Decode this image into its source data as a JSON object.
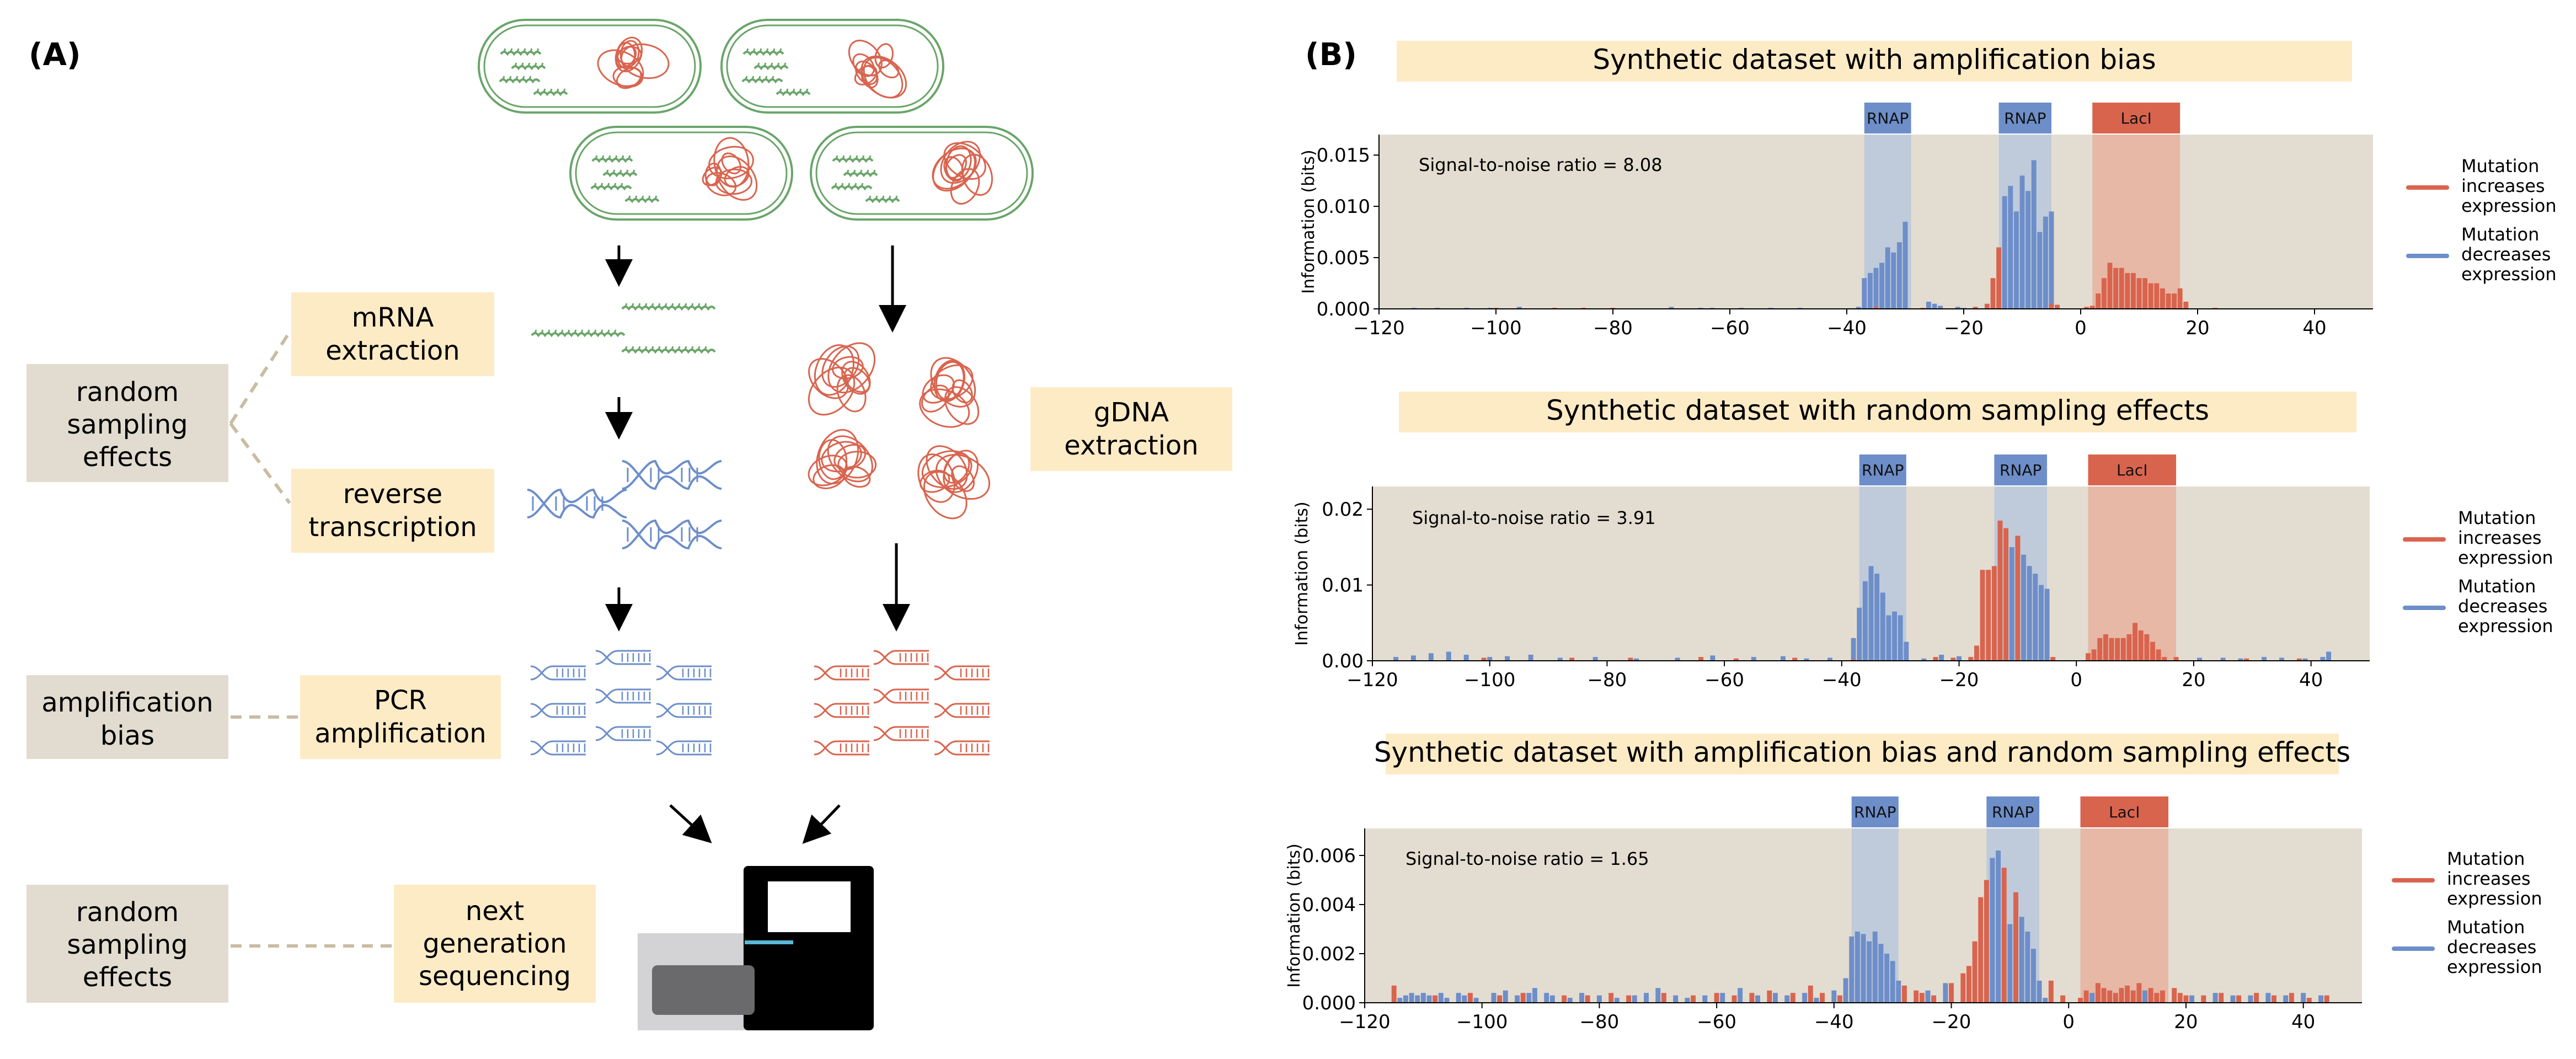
{
  "panel_a": {
    "label": "(A)",
    "boxes": {
      "random_sampling_1": [
        "random",
        "sampling",
        "effects"
      ],
      "amplification_bias": [
        "amplification",
        "bias"
      ],
      "random_sampling_2": [
        "random",
        "sampling",
        "effects"
      ],
      "mrna_extraction": [
        "mRNA",
        "extraction"
      ],
      "reverse_transcription": [
        "reverse",
        "transcription"
      ],
      "pcr_amplification": [
        "PCR",
        "amplification"
      ],
      "next_gen_sequencing": [
        "next",
        "generation",
        "sequencing"
      ],
      "gdna_extraction": [
        "gDNA",
        "extraction"
      ]
    }
  },
  "panel_b": {
    "label": "(B)",
    "ylabel": "Information (bits)",
    "legend": {
      "increases": [
        "Mutation",
        "increases",
        "expression"
      ],
      "decreases": [
        "Mutation",
        "decreases",
        "expression"
      ]
    },
    "region_labels": [
      "RNAP",
      "RNAP",
      "LacI"
    ]
  },
  "colors": {
    "red": "#d9644e",
    "blue": "#6d8ec9",
    "green": "#6aa56a",
    "box_fill": "#fdebc6",
    "gray_box": "#e1dccf",
    "plot_bg": "#e3ddd1",
    "red_band": "#e8b19f",
    "blue_band": "#b9c8dc"
  },
  "chart_data": [
    {
      "type": "bar",
      "title": "Synthetic dataset with amplification bias",
      "annotation": "Signal-to-noise ratio = 8.08",
      "ylabel": "Information (bits)",
      "xlim": [
        -120,
        50
      ],
      "ylim": [
        0,
        0.017
      ],
      "x_ticks": [
        -120,
        -100,
        -80,
        -60,
        -40,
        -20,
        0,
        20,
        40
      ],
      "y_ticks": [
        "0.000",
        "0.005",
        "0.010",
        "0.015"
      ],
      "y_tick_values": [
        0,
        0.005,
        0.01,
        0.015
      ],
      "regions": [
        {
          "label": "RNAP",
          "start": -37,
          "end": -29,
          "color": "blue"
        },
        {
          "label": "RNAP",
          "start": -14,
          "end": -5,
          "color": "blue"
        },
        {
          "label": "LacI",
          "start": 2,
          "end": 17,
          "color": "red"
        }
      ],
      "series": [
        {
          "color": "blue",
          "x": [
            -38,
            -37,
            -36,
            -35,
            -34,
            -33,
            -32,
            -31,
            -30,
            -26,
            -25,
            -24,
            -21,
            -20,
            -13,
            -12,
            -11,
            -10,
            -9,
            -8,
            -7,
            -6,
            -5,
            -114,
            -110,
            -105,
            -101,
            -96,
            -70,
            -65,
            -63,
            -58,
            -53,
            -48
          ],
          "values": [
            0.0002,
            0.003,
            0.0035,
            0.004,
            0.0045,
            0.006,
            0.0055,
            0.0065,
            0.0085,
            0.0007,
            0.0005,
            0.0003,
            0.0002,
            0.0001,
            0.011,
            0.012,
            0.0095,
            0.013,
            0.0115,
            0.0145,
            0.0075,
            0.009,
            0.0095,
            0.0001,
            0.0001,
            0.0001,
            0.0001,
            0.0002,
            0.0002,
            0.0001,
            0.0001,
            0.0001,
            0.0001,
            0.0001
          ]
        },
        {
          "color": "red",
          "x": [
            -16,
            -15,
            -14,
            -5,
            -4,
            1,
            2,
            3,
            4,
            5,
            6,
            7,
            8,
            9,
            10,
            11,
            12,
            13,
            14,
            15,
            16,
            17,
            18,
            -100,
            -90,
            -85,
            -80,
            -35,
            -27,
            -18,
            23
          ],
          "values": [
            0.0005,
            0.003,
            0.006,
            0.0005,
            0.0004,
            0.0002,
            0.0003,
            0.0015,
            0.003,
            0.0045,
            0.004,
            0.004,
            0.0035,
            0.0035,
            0.003,
            0.003,
            0.0025,
            0.0025,
            0.002,
            0.0015,
            0.0015,
            0.002,
            0.0007,
            0.0001,
            0.0001,
            0.0001,
            0.0001,
            0.0002,
            0.0001,
            0.0002,
            0.0001
          ]
        }
      ]
    },
    {
      "type": "bar",
      "title": "Synthetic dataset with random sampling effects",
      "annotation": "Signal-to-noise ratio = 3.91",
      "ylabel": "Information (bits)",
      "xlim": [
        -120,
        50
      ],
      "ylim": [
        0,
        0.023
      ],
      "x_ticks": [
        -120,
        -100,
        -80,
        -60,
        -40,
        -20,
        0,
        20,
        40
      ],
      "y_ticks": [
        "0.00",
        "0.01",
        "0.02"
      ],
      "y_tick_values": [
        0,
        0.01,
        0.02
      ],
      "regions": [
        {
          "label": "RNAP",
          "start": -37,
          "end": -29,
          "color": "blue"
        },
        {
          "label": "RNAP",
          "start": -14,
          "end": -5,
          "color": "blue"
        },
        {
          "label": "LacI",
          "start": 2,
          "end": 17,
          "color": "red"
        }
      ],
      "series": [
        {
          "color": "blue",
          "x": [
            -38,
            -37,
            -36,
            -35,
            -34,
            -33,
            -32,
            -31,
            -30,
            -29,
            -11,
            -9,
            -8,
            -7,
            -6,
            -5,
            -116,
            -113,
            -110,
            -107,
            -104,
            -100,
            -97,
            -93,
            -88,
            -82,
            -75,
            -68,
            -62,
            -55,
            -50,
            -46,
            -42,
            -26,
            -23,
            -20,
            -17,
            21,
            25,
            28,
            32,
            35,
            39,
            42,
            43
          ],
          "values": [
            0.003,
            0.007,
            0.0105,
            0.0125,
            0.0115,
            0.009,
            0.006,
            0.0065,
            0.006,
            0.0025,
            0.015,
            0.014,
            0.0125,
            0.0115,
            0.01,
            0.0095,
            0.0005,
            0.0007,
            0.001,
            0.0012,
            0.0008,
            0.0005,
            0.0006,
            0.0008,
            0.0004,
            0.0005,
            0.0003,
            0.0004,
            0.0007,
            0.0005,
            0.0006,
            0.0003,
            0.0004,
            0.0003,
            0.0008,
            0.0006,
            0.0004,
            0.0004,
            0.0004,
            0.0003,
            0.0005,
            0.0004,
            0.0003,
            0.0005,
            0.0012
          ]
        },
        {
          "color": "red",
          "x": [
            -18,
            -17,
            -16,
            -15,
            -14,
            -13,
            -12,
            -10,
            -4,
            2,
            3,
            4,
            5,
            6,
            7,
            8,
            9,
            10,
            11,
            12,
            13,
            14,
            15,
            17,
            -101,
            -86,
            -76,
            -64,
            -58,
            -48,
            -38,
            -24,
            -21,
            29,
            38
          ],
          "values": [
            0.0005,
            0.002,
            0.012,
            0.012,
            0.0125,
            0.0185,
            0.0175,
            0.0165,
            0.0005,
            0.001,
            0.0015,
            0.003,
            0.0035,
            0.003,
            0.003,
            0.003,
            0.0035,
            0.005,
            0.004,
            0.0035,
            0.0025,
            0.0015,
            0.0005,
            0.0005,
            0.0004,
            0.0004,
            0.0004,
            0.0005,
            0.0003,
            0.0004,
            0.0002,
            0.0005,
            0.0004,
            0.0003,
            0.0003
          ]
        }
      ]
    },
    {
      "type": "bar",
      "title": "Synthetic dataset with amplification bias and random sampling effects",
      "annotation": "Signal-to-noise ratio = 1.65",
      "ylabel": "Information (bits)",
      "xlim": [
        -120,
        50
      ],
      "ylim": [
        0,
        0.0071
      ],
      "x_ticks": [
        -120,
        -100,
        -80,
        -60,
        -40,
        -20,
        0,
        20,
        40
      ],
      "y_ticks": [
        "0.000",
        "0.002",
        "0.004",
        "0.006"
      ],
      "y_tick_values": [
        0,
        0.002,
        0.004,
        0.006
      ],
      "regions": [
        {
          "label": "RNAP",
          "start": -37,
          "end": -29,
          "color": "blue"
        },
        {
          "label": "RNAP",
          "start": -14,
          "end": -5,
          "color": "blue"
        },
        {
          "label": "LacI",
          "start": 2,
          "end": 17,
          "color": "red"
        }
      ],
      "series": [
        {
          "color": "blue",
          "x": [
            -114,
            -113,
            -112,
            -111,
            -110,
            -109,
            -107,
            -106,
            -104,
            -103,
            -101,
            -98,
            -96,
            -94,
            -92,
            -91,
            -89,
            -88,
            -85,
            -83,
            -80,
            -77,
            -74,
            -72,
            -70,
            -67,
            -65,
            -62,
            -59,
            -56,
            -53,
            -50,
            -48,
            -45,
            -43,
            -40,
            -38,
            -37,
            -36,
            -35,
            -34,
            -33,
            -32,
            -31,
            -30,
            -29,
            -13,
            -12,
            -10,
            -8,
            -7,
            -6,
            -5,
            -4,
            -24,
            -21,
            4,
            13,
            21,
            25,
            28,
            31,
            34,
            37,
            40,
            43
          ],
          "values": [
            0.0002,
            0.0003,
            0.0004,
            0.0003,
            0.0004,
            0.0003,
            0.0004,
            0.0002,
            0.0004,
            0.0003,
            0.0002,
            0.0004,
            0.0005,
            0.0003,
            0.0004,
            0.0006,
            0.0004,
            0.0003,
            0.0002,
            0.0004,
            0.0003,
            0.0002,
            0.0003,
            0.0004,
            0.0006,
            0.0003,
            0.0002,
            0.0003,
            0.0004,
            0.0006,
            0.0003,
            0.0004,
            0.0003,
            0.0004,
            0.0002,
            0.0005,
            0.001,
            0.0027,
            0.0029,
            0.0028,
            0.0025,
            0.0029,
            0.0024,
            0.002,
            0.0017,
            0.0009,
            0.0059,
            0.0062,
            0.0032,
            0.0035,
            0.0029,
            0.0022,
            0.0009,
            0.0002,
            0.0005,
            0.0008,
            0.0004,
            0.0005,
            0.0003,
            0.0004,
            0.0003,
            0.0003,
            0.0004,
            0.0003,
            0.0004,
            0.0003
          ]
        },
        {
          "color": "red",
          "x": [
            -115,
            -108,
            -102,
            -97,
            -93,
            -86,
            -82,
            -78,
            -75,
            -69,
            -64,
            -60,
            -57,
            -54,
            -51,
            -47,
            -44,
            -42,
            -39,
            -28,
            -26,
            -25,
            -23,
            -20,
            -18,
            -17,
            -16,
            -15,
            -14,
            -11,
            -9,
            -3,
            -1,
            2,
            3,
            5,
            6,
            7,
            8,
            9,
            10,
            11,
            12,
            14,
            15,
            16,
            18,
            19,
            20,
            23,
            26,
            29,
            32,
            35,
            38,
            41,
            44
          ],
          "values": [
            0.0007,
            0.0003,
            0.0004,
            0.0003,
            0.0004,
            0.0003,
            0.0003,
            0.0004,
            0.0003,
            0.0004,
            0.0003,
            0.0004,
            0.0003,
            0.0004,
            0.0005,
            0.0004,
            0.0007,
            0.0004,
            0.0003,
            0.0007,
            0.0005,
            0.0004,
            0.0003,
            0.0008,
            0.0012,
            0.0015,
            0.0025,
            0.0043,
            0.005,
            0.0055,
            0.0045,
            0.0009,
            0.0003,
            0.0002,
            0.0005,
            0.0008,
            0.0006,
            0.0005,
            0.0004,
            0.0006,
            0.0007,
            0.0005,
            0.0008,
            0.0006,
            0.0004,
            0.0005,
            0.0006,
            0.0004,
            0.0003,
            0.0003,
            0.0004,
            0.0003,
            0.0004,
            0.0003,
            0.0004,
            0.0002,
            0.0003
          ]
        }
      ]
    }
  ]
}
